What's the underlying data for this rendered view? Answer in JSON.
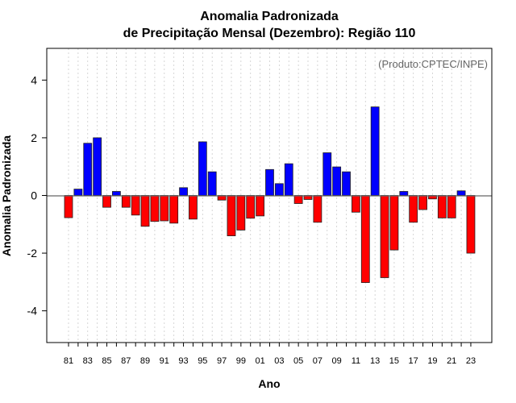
{
  "chart_data": {
    "type": "bar",
    "title": "Anomalia Padronizada",
    "subtitle": "de Precipitação Mensal (Dezembro): Região 110",
    "annotation": "(Produto:CPTEC/INPE)",
    "xlabel": "Ano",
    "ylabel": "Anomalia Padronizada",
    "ylim": [
      -5.1,
      5.1
    ],
    "yticks": [
      -4,
      -2,
      0,
      2,
      4
    ],
    "ytick_labels": [
      "-4",
      "-2",
      "0",
      "2",
      "4"
    ],
    "grid": "vertical dotted",
    "categories": [
      "81",
      "82",
      "83",
      "84",
      "85",
      "86",
      "87",
      "88",
      "89",
      "90",
      "91",
      "92",
      "93",
      "94",
      "95",
      "96",
      "97",
      "98",
      "99",
      "00",
      "01",
      "02",
      "03",
      "04",
      "05",
      "06",
      "07",
      "08",
      "09",
      "10",
      "11",
      "12",
      "13",
      "14",
      "15",
      "16",
      "17",
      "18",
      "19",
      "20",
      "21",
      "22",
      "23"
    ],
    "xtick_labels": [
      "81",
      "83",
      "85",
      "87",
      "89",
      "91",
      "93",
      "95",
      "97",
      "99",
      "01",
      "03",
      "05",
      "07",
      "09",
      "11",
      "13",
      "15",
      "17",
      "19",
      "21",
      "23"
    ],
    "values": [
      -0.77,
      0.22,
      1.81,
      2.0,
      -0.41,
      0.14,
      -0.41,
      -0.68,
      -1.07,
      -0.9,
      -0.88,
      -0.96,
      0.27,
      -0.82,
      1.86,
      0.82,
      -0.16,
      -1.4,
      -1.2,
      -0.79,
      -0.71,
      0.9,
      0.41,
      1.1,
      -0.28,
      -0.14,
      -0.93,
      1.48,
      0.99,
      0.82,
      -0.58,
      -3.02,
      3.07,
      -2.85,
      -1.89,
      0.14,
      -0.93,
      -0.49,
      -0.12,
      -0.78,
      -0.78,
      0.16,
      -2.0
    ],
    "colors": {
      "positive": "#0000ff",
      "negative": "#ff0000"
    }
  }
}
